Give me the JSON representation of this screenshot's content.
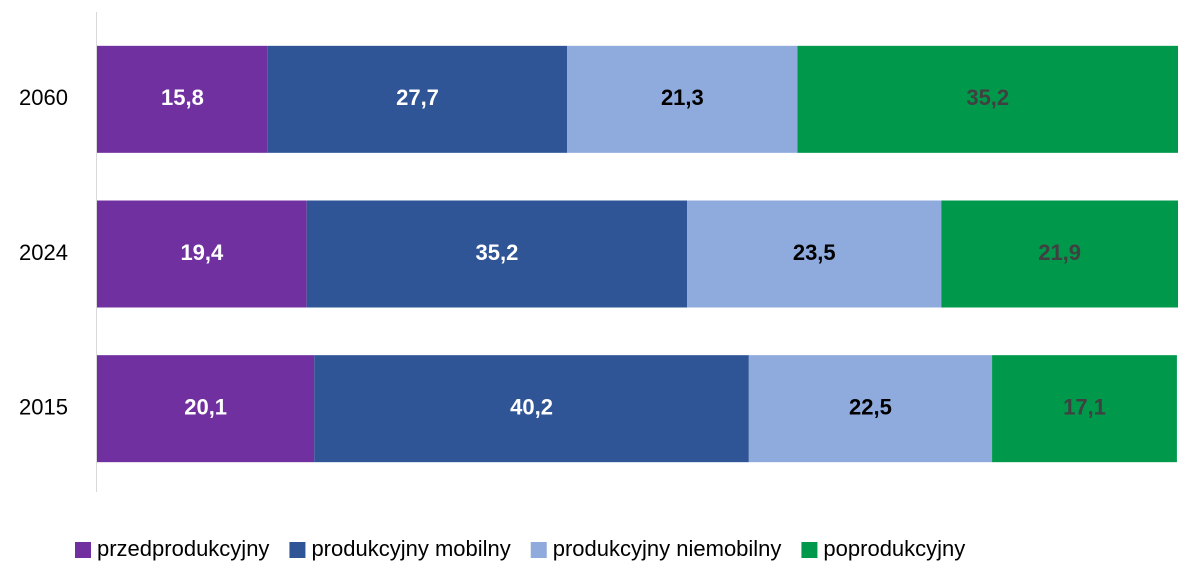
{
  "chart_data": {
    "type": "stacked-bar-horizontal",
    "categories": [
      "2060",
      "2024",
      "2015"
    ],
    "xlim": [
      0,
      100
    ],
    "series": [
      {
        "name": "przedprodukcyjny",
        "color": "#7030a0",
        "label_color": "#ffffff",
        "values": [
          15.8,
          19.4,
          20.1
        ],
        "value_labels": [
          "15,8",
          "19,4",
          "20,1"
        ]
      },
      {
        "name": "produkcyjny mobilny",
        "color": "#2f5597",
        "label_color": "#ffffff",
        "values": [
          27.7,
          35.2,
          40.2
        ],
        "value_labels": [
          "27,7",
          "35,2",
          "40,2"
        ]
      },
      {
        "name": "produkcyjny niemobilny",
        "color": "#8faadc",
        "label_color": "#000000",
        "values": [
          21.3,
          23.5,
          22.5
        ],
        "value_labels": [
          "21,3",
          "23,5",
          "22,5"
        ]
      },
      {
        "name": "poprodukcyjny",
        "color": "#00994c",
        "label_color": "#404040",
        "values": [
          35.2,
          21.9,
          17.1
        ],
        "value_labels": [
          "35,2",
          "21,9",
          "17,1"
        ]
      }
    ],
    "legend": "bottom"
  }
}
